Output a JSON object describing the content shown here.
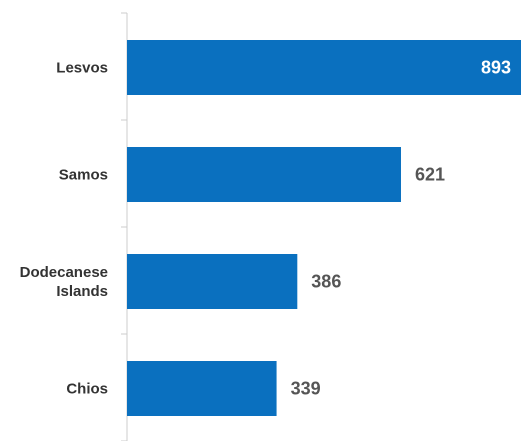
{
  "chart_data": {
    "type": "bar",
    "orientation": "horizontal",
    "categories": [
      "Lesvos",
      "Samos",
      "Dodecanese Islands",
      "Chios"
    ],
    "category_lines": [
      [
        "Lesvos"
      ],
      [
        "Samos"
      ],
      [
        "Dodecanese",
        "Islands"
      ],
      [
        "Chios"
      ]
    ],
    "values": [
      893,
      621,
      386,
      339
    ],
    "value_labels": [
      "893",
      "621",
      "386",
      "339"
    ],
    "xlim": [
      0,
      893
    ],
    "grid": false,
    "legend": "none",
    "bar_color": "#0a70bf",
    "inside_label_color": "#ffffff",
    "outside_label_color": "#555555",
    "axis_color": "#cccccc",
    "category_label_color": "#333333"
  }
}
